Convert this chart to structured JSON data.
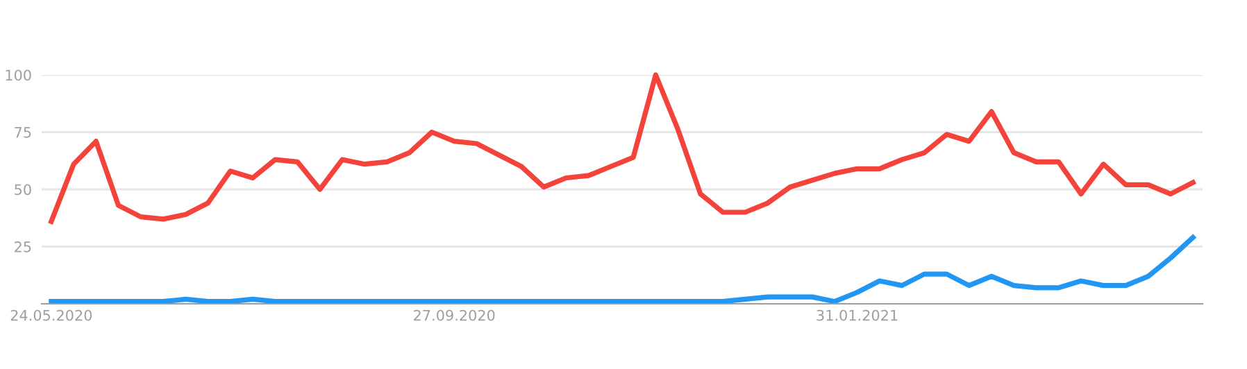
{
  "chart_data": {
    "type": "line",
    "x": [
      "2020-05-24",
      "2020-05-31",
      "2020-06-07",
      "2020-06-14",
      "2020-06-21",
      "2020-06-28",
      "2020-07-05",
      "2020-07-12",
      "2020-07-19",
      "2020-07-26",
      "2020-08-02",
      "2020-08-09",
      "2020-08-16",
      "2020-08-23",
      "2020-08-30",
      "2020-09-06",
      "2020-09-13",
      "2020-09-20",
      "2020-09-27",
      "2020-10-04",
      "2020-10-11",
      "2020-10-18",
      "2020-10-25",
      "2020-11-01",
      "2020-11-08",
      "2020-11-15",
      "2020-11-22",
      "2020-11-29",
      "2020-12-06",
      "2020-12-13",
      "2020-12-20",
      "2020-12-27",
      "2021-01-03",
      "2021-01-10",
      "2021-01-17",
      "2021-01-24",
      "2021-01-31",
      "2021-02-07",
      "2021-02-14",
      "2021-02-21",
      "2021-02-28",
      "2021-03-07",
      "2021-03-14",
      "2021-03-21",
      "2021-03-28",
      "2021-04-04",
      "2021-04-11",
      "2021-04-18",
      "2021-04-25",
      "2021-05-02",
      "2021-05-09",
      "2021-05-16"
    ],
    "series": [
      {
        "color": "#f4433a",
        "values": [
          36,
          61,
          71,
          43,
          38,
          37,
          39,
          44,
          58,
          55,
          63,
          62,
          50,
          63,
          61,
          62,
          66,
          75,
          71,
          70,
          65,
          60,
          51,
          55,
          56,
          60,
          64,
          100,
          76,
          48,
          40,
          40,
          44,
          51,
          54,
          57,
          59,
          59,
          63,
          66,
          74,
          71,
          84,
          66,
          62,
          62,
          48,
          61,
          52,
          52,
          48,
          53
        ]
      },
      {
        "color": "#2196f3",
        "values": [
          1,
          1,
          1,
          1,
          1,
          1,
          2,
          1,
          1,
          2,
          1,
          1,
          1,
          1,
          1,
          1,
          1,
          1,
          1,
          1,
          1,
          1,
          1,
          1,
          1,
          1,
          1,
          1,
          1,
          1,
          1,
          2,
          3,
          3,
          3,
          1,
          5,
          10,
          8,
          13,
          13,
          8,
          12,
          8,
          7,
          7,
          10,
          8,
          8,
          12,
          20,
          29
        ]
      }
    ],
    "xlim": [
      "2020-05-21",
      "2021-05-19"
    ],
    "xticks": [
      {
        "value": "2020-05-24",
        "label": "24.05.2020"
      },
      {
        "value": "2020-09-27",
        "label": "27.09.2020"
      },
      {
        "value": "2021-01-31",
        "label": "31.01.2021"
      }
    ],
    "ylim": [
      0,
      100
    ],
    "yticks": [
      25,
      50,
      75,
      100
    ],
    "grid": "y",
    "marker": "none",
    "line_style": "solid"
  }
}
